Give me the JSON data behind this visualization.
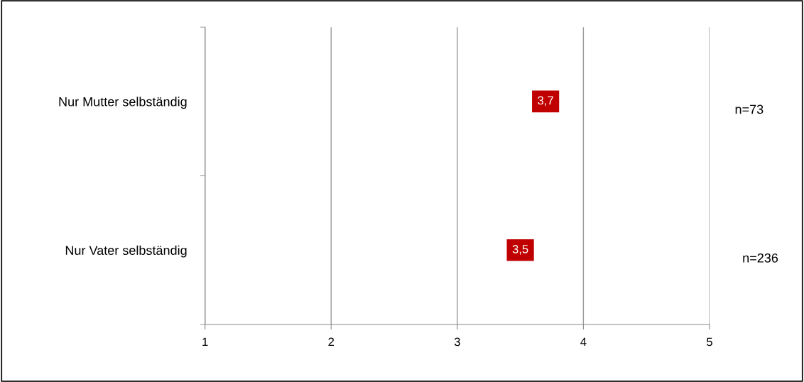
{
  "chart_data": {
    "type": "scatter",
    "orientation": "horizontal",
    "categories": [
      "Nur Mutter selbständig",
      "Nur Vater selbständig"
    ],
    "series": [
      {
        "color": "#c00000",
        "values": [
          3.7,
          3.5
        ],
        "value_labels": [
          "3,7",
          "3,5"
        ]
      }
    ],
    "marker": "square",
    "xlim": [
      1,
      5
    ],
    "xticks": [
      1,
      2,
      3,
      4,
      5
    ],
    "grid": "x",
    "annotations": [
      "n=73",
      "n=236"
    ]
  }
}
